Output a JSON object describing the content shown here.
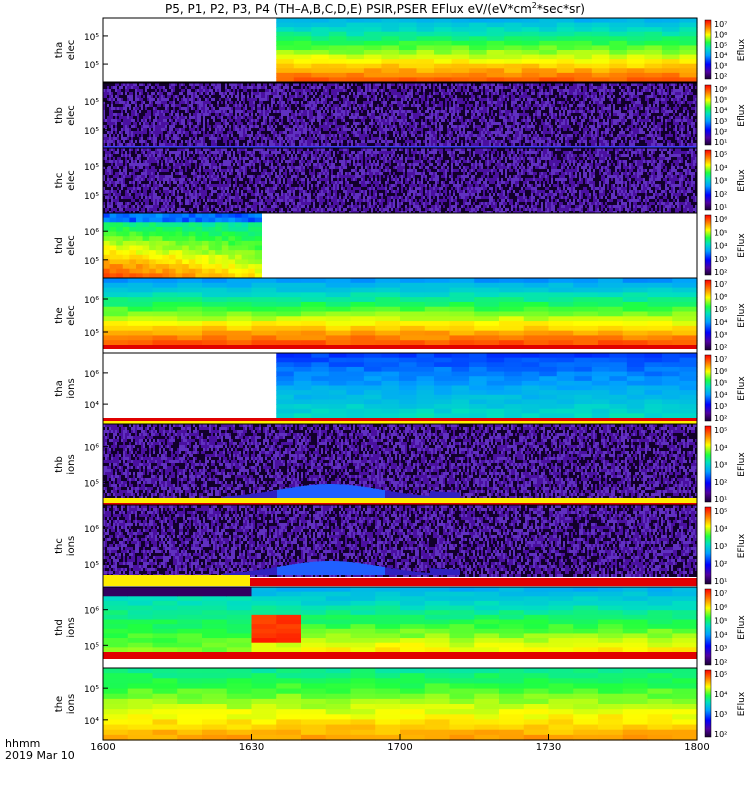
{
  "title": "P5, P1, P2, P3, P4 (TH-A,B,C,D,E) PSIR,PSER EFlux eV/(eV*cm2*sec*sr)",
  "title_parts": {
    "pre": "P5, P1, P2, P3, P4 (TH–A,B,C,D,E) PSIR,PSER EFlux eV/(eV*cm",
    "sup": "2",
    "post": "*sec*sr)"
  },
  "x_axis": {
    "label_line1": "hhmm",
    "label_line2": "2019 Mar 10",
    "ticks": [
      "1600",
      "1630",
      "1700",
      "1730",
      "1800"
    ],
    "range_minutes": [
      0,
      120
    ]
  },
  "chart_data": {
    "type": "heatmap",
    "x_units": "hhmm",
    "panels": [
      {
        "id": "tha-elec",
        "probe": "tha",
        "species": "elec",
        "yticks": [
          "10⁵",
          "10⁵"
        ],
        "cbar_ticks": [
          "10⁷",
          "10⁶",
          "10⁵",
          "10⁴",
          "10³",
          "10²"
        ],
        "cbar_label": "Eflux",
        "data_start": "1635",
        "data_end": "1800",
        "profile": "tha_e"
      },
      {
        "id": "thb-elec",
        "probe": "thb",
        "species": "elec",
        "yticks": [
          "10⁵",
          "10⁵"
        ],
        "cbar_ticks": [
          "10⁶",
          "10⁵",
          "10⁴",
          "10³",
          "10²",
          "10¹"
        ],
        "cbar_label": "Eflux",
        "data_start": "1600",
        "data_end": "1800",
        "profile": "noise"
      },
      {
        "id": "thc-elec",
        "probe": "thc",
        "species": "elec",
        "yticks": [
          "10⁵",
          "10⁵"
        ],
        "cbar_ticks": [
          "10⁵",
          "10⁴",
          "10³",
          "10²",
          "10¹"
        ],
        "cbar_label": "Eflux",
        "data_start": "1600",
        "data_end": "1800",
        "profile": "noise"
      },
      {
        "id": "thd-elec",
        "probe": "thd",
        "species": "elec",
        "yticks": [
          "10⁶",
          "10⁵"
        ],
        "cbar_ticks": [
          "10⁶",
          "10⁵",
          "10⁴",
          "10³",
          "10²"
        ],
        "cbar_label": "EFlux",
        "data_start": "1600",
        "data_end": "1632",
        "profile": "thd_e"
      },
      {
        "id": "the-elec",
        "probe": "the",
        "species": "elec",
        "yticks": [
          "10⁶",
          "10⁵"
        ],
        "cbar_ticks": [
          "10⁷",
          "10⁶",
          "10⁵",
          "10⁴",
          "10³",
          "10²"
        ],
        "cbar_label": "EFlux",
        "data_start": "1600",
        "data_end": "1800",
        "profile": "the_e"
      },
      {
        "id": "tha-ions",
        "probe": "tha",
        "species": "ions",
        "yticks": [
          "10⁶",
          "10⁴"
        ],
        "cbar_ticks": [
          "10⁷",
          "10⁶",
          "10⁵",
          "10⁴",
          "10³",
          "10²"
        ],
        "cbar_label": "EFlux",
        "data_start": "1635",
        "data_end": "1800",
        "profile": "tha_i"
      },
      {
        "id": "thb-ions",
        "probe": "thb",
        "species": "ions",
        "yticks": [
          "10⁶",
          "10⁵"
        ],
        "cbar_ticks": [
          "10⁵",
          "10⁴",
          "10³",
          "10²",
          "10¹"
        ],
        "cbar_label": "EFlux",
        "data_start": "1600",
        "data_end": "1800",
        "profile": "noise_ion"
      },
      {
        "id": "thc-ions",
        "probe": "thc",
        "species": "ions",
        "yticks": [
          "10⁶",
          "10⁵"
        ],
        "cbar_ticks": [
          "10⁵",
          "10⁴",
          "10³",
          "10²",
          "10¹"
        ],
        "cbar_label": "EFlux",
        "data_start": "1600",
        "data_end": "1800",
        "profile": "noise_ion"
      },
      {
        "id": "thd-ions",
        "probe": "thd",
        "species": "ions",
        "yticks": [
          "10⁶",
          "10⁵"
        ],
        "cbar_ticks": [
          "10⁷",
          "10⁶",
          "10⁵",
          "10⁴",
          "10³",
          "10²"
        ],
        "cbar_label": "EFlux",
        "data_start": "1600",
        "data_end": "1800",
        "profile": "thd_i"
      },
      {
        "id": "the-ions",
        "probe": "the",
        "species": "ions",
        "yticks": [
          "10⁵",
          "10⁴"
        ],
        "cbar_ticks": [
          "10⁵",
          "10⁴",
          "10³",
          "10²"
        ],
        "cbar_label": "EFlux",
        "data_start": "1600",
        "data_end": "1800",
        "profile": "the_i"
      }
    ]
  },
  "colors": {
    "background": "#ffffff",
    "red_band": "#e00000",
    "yellow_band": "#ffee00",
    "purple_noise": "#3a0a7a"
  }
}
